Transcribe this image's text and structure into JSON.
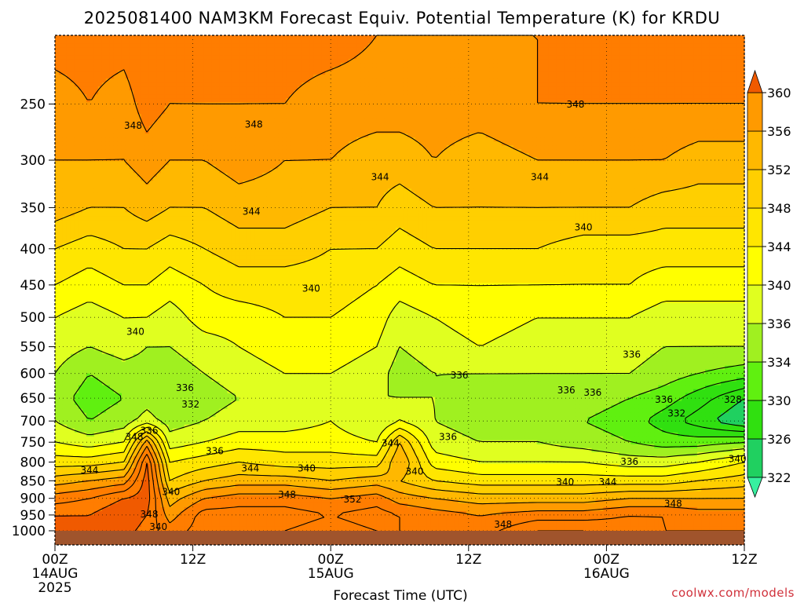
{
  "title": "2025081400 NAM3KM Forecast Equiv. Potential Temperature (K) for KRDU",
  "xlabel": "Forecast Time (UTC)",
  "credit": "coolwx.com/models",
  "colors": {
    "ground": "#a0542c",
    "levels": [
      "#38f0a0",
      "#20d060",
      "#30e010",
      "#60f010",
      "#a0f020",
      "#e0ff20",
      "#ffff00",
      "#ffe600",
      "#ffcf00",
      "#ffb800",
      "#ff9a00",
      "#ff7d00",
      "#f05a00"
    ]
  },
  "chart_data": {
    "type": "heatmap",
    "variable": "Equivalent Potential Temperature (K)",
    "x_ticks": [
      {
        "hour": 0,
        "l1": "00Z",
        "l2": "14AUG",
        "l3": "2025"
      },
      {
        "hour": 12,
        "l1": "12Z",
        "l2": "",
        "l3": ""
      },
      {
        "hour": 24,
        "l1": "00Z",
        "l2": "15AUG",
        "l3": ""
      },
      {
        "hour": 36,
        "l1": "12Z",
        "l2": "",
        "l3": ""
      },
      {
        "hour": 48,
        "l1": "00Z",
        "l2": "16AUG",
        "l3": ""
      },
      {
        "hour": 60,
        "l1": "12Z",
        "l2": "",
        "l3": ""
      }
    ],
    "xlim": [
      0,
      60
    ],
    "y_ticks": [
      250,
      300,
      350,
      400,
      450,
      500,
      550,
      600,
      650,
      700,
      750,
      800,
      850,
      900,
      950,
      1000
    ],
    "ylim": [
      1000,
      200
    ],
    "y_scale": "log-pressure",
    "grid": true,
    "colorbar": {
      "placement": "right",
      "ticks": [
        322,
        326,
        330,
        334,
        336,
        340,
        344,
        348,
        352,
        356,
        360
      ]
    },
    "profile_levels": [
      200,
      250,
      300,
      350,
      400,
      450,
      500,
      550,
      600,
      650,
      700,
      750,
      800,
      850,
      900,
      950,
      1000
    ],
    "profiles": [
      {
        "hour": 0,
        "theta_e": [
          349,
          347,
          346,
          345,
          342,
          340,
          338,
          337,
          336,
          335,
          336,
          338,
          341,
          345,
          349,
          352,
          353
        ]
      },
      {
        "hour": 3,
        "theta_e": [
          349,
          348,
          346,
          344,
          341,
          339,
          337,
          336,
          334,
          333,
          334,
          337,
          341,
          346,
          350,
          352,
          353
        ]
      },
      {
        "hour": 6,
        "theta_e": [
          349,
          347,
          346,
          344,
          342,
          340,
          338,
          337,
          335,
          334,
          335,
          338,
          342,
          347,
          352,
          354,
          353
        ]
      },
      {
        "hour": 8,
        "theta_e": [
          350,
          349,
          347,
          345,
          342,
          340,
          338,
          336,
          335,
          335,
          337,
          347,
          352,
          353,
          353,
          352,
          351
        ]
      },
      {
        "hour": 10,
        "theta_e": [
          349,
          348,
          346,
          344,
          341,
          339,
          337,
          336,
          335,
          334,
          335,
          337,
          340,
          342,
          345,
          347,
          349
        ]
      },
      {
        "hour": 13,
        "theta_e": [
          350,
          348,
          346,
          344,
          342,
          340,
          339,
          337,
          336,
          335,
          336,
          338,
          341,
          344,
          348,
          351,
          351
        ]
      },
      {
        "hour": 16,
        "theta_e": [
          349,
          348,
          347,
          345,
          343,
          341,
          339,
          338,
          337,
          336,
          337,
          339,
          342,
          345,
          349,
          351,
          350
        ]
      },
      {
        "hour": 20,
        "theta_e": [
          349,
          348,
          346,
          345,
          343,
          341,
          340,
          339,
          338,
          337,
          337,
          339,
          341,
          345,
          349,
          351,
          350
        ]
      },
      {
        "hour": 24,
        "theta_e": [
          349,
          347,
          346,
          344,
          342,
          341,
          340,
          339,
          338,
          337,
          338,
          339,
          341,
          344,
          348,
          350,
          349
        ]
      },
      {
        "hour": 28,
        "theta_e": [
          348,
          347,
          345,
          344,
          342,
          340,
          339,
          338,
          337,
          336,
          336,
          338,
          341,
          345,
          349,
          351,
          350
        ]
      },
      {
        "hour": 30,
        "theta_e": [
          348,
          347,
          345,
          343,
          341,
          339,
          337,
          336,
          335,
          336,
          338,
          344,
          346,
          344,
          347,
          350,
          350
        ]
      },
      {
        "hour": 33,
        "theta_e": [
          348,
          347,
          346,
          344,
          342,
          340,
          338,
          337,
          336,
          336,
          336,
          337,
          339,
          342,
          346,
          349,
          349
        ]
      },
      {
        "hour": 37,
        "theta_e": [
          348,
          347,
          345,
          344,
          342,
          340,
          339,
          338,
          336,
          335,
          335,
          336,
          338,
          341,
          345,
          348,
          349
        ]
      },
      {
        "hour": 42,
        "theta_e": [
          348,
          348,
          346,
          344,
          342,
          340,
          338,
          337,
          336,
          335,
          335,
          336,
          338,
          341,
          345,
          349,
          352
        ]
      },
      {
        "hour": 46,
        "theta_e": [
          349,
          348,
          346,
          344,
          341,
          340,
          338,
          337,
          336,
          335,
          334,
          335,
          338,
          341,
          345,
          349,
          352
        ]
      },
      {
        "hour": 50,
        "theta_e": [
          349,
          348,
          346,
          344,
          341,
          340,
          338,
          337,
          336,
          334,
          333,
          334,
          337,
          341,
          346,
          350,
          351
        ]
      },
      {
        "hour": 53,
        "theta_e": [
          349,
          348,
          346,
          343,
          341,
          339,
          337,
          336,
          335,
          333,
          331,
          333,
          337,
          341,
          346,
          350,
          350
        ]
      },
      {
        "hour": 56,
        "theta_e": [
          349,
          348,
          345,
          343,
          341,
          339,
          337,
          336,
          334,
          331,
          329,
          333,
          338,
          342,
          346,
          349,
          350
        ]
      },
      {
        "hour": 60,
        "theta_e": [
          349,
          348,
          345,
          343,
          341,
          339,
          337,
          336,
          333,
          328,
          326,
          334,
          340,
          343,
          346,
          349,
          350
        ]
      }
    ],
    "contour_labels": [
      {
        "text": "348",
        "hour": 6.8,
        "p": 271
      },
      {
        "text": "348",
        "hour": 17.3,
        "p": 270
      },
      {
        "text": "348",
        "hour": 45.3,
        "p": 253
      },
      {
        "text": "344",
        "hour": 28.3,
        "p": 320
      },
      {
        "text": "344",
        "hour": 42.2,
        "p": 320
      },
      {
        "text": "344",
        "hour": 17.1,
        "p": 358
      },
      {
        "text": "340",
        "hour": 46.0,
        "p": 377
      },
      {
        "text": "340",
        "hour": 22.3,
        "p": 460
      },
      {
        "text": "340",
        "hour": 7.0,
        "p": 529
      },
      {
        "text": "336",
        "hour": 50.2,
        "p": 570
      },
      {
        "text": "336",
        "hour": 35.2,
        "p": 610
      },
      {
        "text": "336",
        "hour": 44.5,
        "p": 640
      },
      {
        "text": "336",
        "hour": 46.8,
        "p": 645
      },
      {
        "text": "336",
        "hour": 53.0,
        "p": 660
      },
      {
        "text": "336",
        "hour": 11.3,
        "p": 635
      },
      {
        "text": "332",
        "hour": 11.8,
        "p": 670
      },
      {
        "text": "336",
        "hour": 8.2,
        "p": 730
      },
      {
        "text": "348",
        "hour": 6.9,
        "p": 745
      },
      {
        "text": "336",
        "hour": 34.2,
        "p": 745
      },
      {
        "text": "344",
        "hour": 29.2,
        "p": 760
      },
      {
        "text": "336",
        "hour": 13.9,
        "p": 780
      },
      {
        "text": "332",
        "hour": 54.1,
        "p": 690
      },
      {
        "text": "328",
        "hour": 59.0,
        "p": 660
      },
      {
        "text": "336",
        "hour": 50.0,
        "p": 807
      },
      {
        "text": "340",
        "hour": 59.4,
        "p": 800
      },
      {
        "text": "344",
        "hour": 3.0,
        "p": 830
      },
      {
        "text": "344",
        "hour": 17.0,
        "p": 825
      },
      {
        "text": "340",
        "hour": 21.9,
        "p": 825
      },
      {
        "text": "340",
        "hour": 31.3,
        "p": 833
      },
      {
        "text": "340",
        "hour": 44.4,
        "p": 862
      },
      {
        "text": "344",
        "hour": 48.1,
        "p": 862
      },
      {
        "text": "340",
        "hour": 10.1,
        "p": 890
      },
      {
        "text": "348",
        "hour": 20.2,
        "p": 898
      },
      {
        "text": "352",
        "hour": 25.9,
        "p": 912
      },
      {
        "text": "348",
        "hour": 53.8,
        "p": 925
      },
      {
        "text": "348",
        "hour": 8.2,
        "p": 958
      },
      {
        "text": "348",
        "hour": 39.0,
        "p": 990
      },
      {
        "text": "340",
        "hour": 9.0,
        "p": 998
      }
    ]
  }
}
